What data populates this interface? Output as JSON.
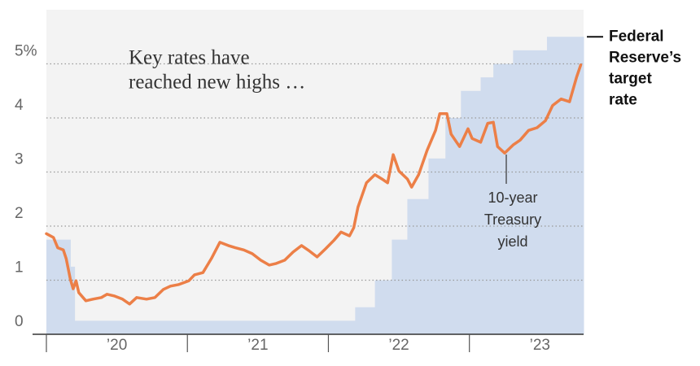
{
  "chart_data": {
    "type": "line",
    "annotations": [
      {
        "text": [
          "Key rates have",
          "reached new highs …"
        ]
      }
    ],
    "xlim": [
      2020,
      2023.81
    ],
    "xticks": [
      {
        "value": 2020.5,
        "label": "’20"
      },
      {
        "value": 2021.5,
        "label": "’21"
      },
      {
        "value": 2022.5,
        "label": "’22"
      },
      {
        "value": 2023.5,
        "label": "’23"
      }
    ],
    "xminorticks": [
      2020,
      2021,
      2022,
      2023
    ],
    "ylim": [
      0,
      6
    ],
    "yticks": [
      0,
      1,
      2,
      3,
      4,
      {
        "value": 5,
        "label": "5%"
      }
    ],
    "grid": true,
    "series": [
      {
        "label": [
          "Federal",
          "Reserve’s",
          "target",
          "rate"
        ],
        "style": "step-area",
        "color": "#d0dcee",
        "x": [
          2020.0,
          2020.17,
          2020.2,
          2022.19,
          2022.33,
          2022.45,
          2022.56,
          2022.71,
          2022.83,
          2022.94,
          2023.08,
          2023.17,
          2023.31,
          2023.55
        ],
        "values": [
          1.75,
          1.25,
          0.25,
          0.5,
          1.0,
          1.75,
          2.5,
          3.25,
          4.0,
          4.5,
          4.75,
          5.0,
          5.25,
          5.5
        ]
      },
      {
        "label": [
          "10-year",
          "Treasury",
          "yield"
        ],
        "style": "line",
        "color": "#ec7f47",
        "x": [
          2020.0,
          2020.05,
          2020.08,
          2020.12,
          2020.14,
          2020.17,
          2020.19,
          2020.21,
          2020.23,
          2020.28,
          2020.33,
          2020.39,
          2020.43,
          2020.48,
          2020.54,
          2020.59,
          2020.64,
          2020.71,
          2020.77,
          2020.83,
          2020.88,
          2020.94,
          2021.01,
          2021.05,
          2021.11,
          2021.17,
          2021.23,
          2021.29,
          2021.34,
          2021.4,
          2021.46,
          2021.52,
          2021.58,
          2021.63,
          2021.69,
          2021.75,
          2021.81,
          2021.86,
          2021.92,
          2021.98,
          2022.04,
          2022.09,
          2022.15,
          2022.18,
          2022.21,
          2022.27,
          2022.33,
          2022.38,
          2022.42,
          2022.46,
          2022.5,
          2022.56,
          2022.59,
          2022.64,
          2022.7,
          2022.76,
          2022.79,
          2022.84,
          2022.87,
          2022.93,
          2022.99,
          2023.02,
          2023.08,
          2023.13,
          2023.17,
          2023.2,
          2023.25,
          2023.31,
          2023.36,
          2023.42,
          2023.48,
          2023.54,
          2023.59,
          2023.65,
          2023.71,
          2023.76,
          2023.79
        ],
        "values": [
          1.86,
          1.79,
          1.6,
          1.56,
          1.4,
          1.02,
          0.84,
          0.99,
          0.77,
          0.62,
          0.65,
          0.68,
          0.74,
          0.71,
          0.65,
          0.56,
          0.68,
          0.65,
          0.68,
          0.83,
          0.89,
          0.92,
          0.99,
          1.1,
          1.14,
          1.4,
          1.7,
          1.64,
          1.6,
          1.56,
          1.49,
          1.37,
          1.28,
          1.31,
          1.37,
          1.52,
          1.64,
          1.55,
          1.43,
          1.58,
          1.74,
          1.89,
          1.82,
          1.97,
          2.35,
          2.8,
          2.95,
          2.87,
          2.8,
          3.32,
          3.02,
          2.87,
          2.72,
          2.95,
          3.4,
          3.77,
          4.08,
          4.08,
          3.7,
          3.47,
          3.8,
          3.62,
          3.55,
          3.9,
          3.92,
          3.47,
          3.35,
          3.5,
          3.59,
          3.77,
          3.82,
          3.95,
          4.23,
          4.35,
          4.3,
          4.75,
          4.98
        ]
      }
    ]
  }
}
